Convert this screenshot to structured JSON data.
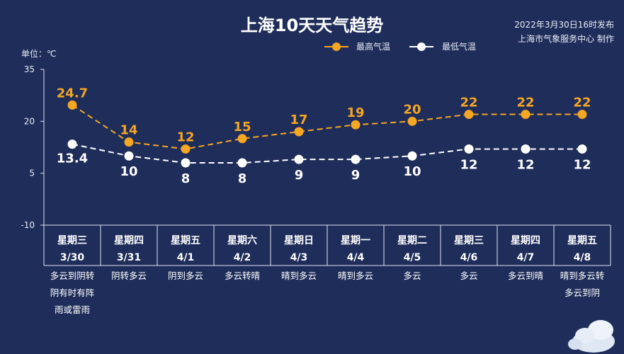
{
  "header": {
    "title": "上海10天天气趋势",
    "publish_time": "2022年3月30日16时发布",
    "publisher": "上海市气象服务中心 制作",
    "unit_label": "单位：℃"
  },
  "colors": {
    "background": "#1f2d5a",
    "high_series": "#f5a623",
    "low_series": "#ffffff"
  },
  "chart_data": {
    "type": "line",
    "title": "上海10天天气趋势",
    "ylabel": "单位：℃",
    "ylim": [
      -10,
      35
    ],
    "yticks": [
      35,
      20,
      5,
      -10
    ],
    "grid": false,
    "legend_position": "top-right",
    "categories": [
      {
        "weekday": "星期三",
        "date": "3/30",
        "weather": [
          "多云到阴转",
          "阴有时有阵",
          "雨或雷雨"
        ]
      },
      {
        "weekday": "星期四",
        "date": "3/31",
        "weather": [
          "阴转多云"
        ]
      },
      {
        "weekday": "星期五",
        "date": "4/1",
        "weather": [
          "阴到多云"
        ]
      },
      {
        "weekday": "星期六",
        "date": "4/2",
        "weather": [
          "多云转晴"
        ]
      },
      {
        "weekday": "星期日",
        "date": "4/3",
        "weather": [
          "晴到多云"
        ]
      },
      {
        "weekday": "星期一",
        "date": "4/4",
        "weather": [
          "晴到多云"
        ]
      },
      {
        "weekday": "星期二",
        "date": "4/5",
        "weather": [
          "多云"
        ]
      },
      {
        "weekday": "星期三",
        "date": "4/6",
        "weather": [
          "多云"
        ]
      },
      {
        "weekday": "星期四",
        "date": "4/7",
        "weather": [
          "多云到晴"
        ]
      },
      {
        "weekday": "星期五",
        "date": "4/8",
        "weather": [
          "晴到多云转",
          "多云到阴"
        ]
      }
    ],
    "series": [
      {
        "name": "最高气温",
        "key": "high",
        "color": "#f5a623",
        "values": [
          24.7,
          14,
          12,
          15,
          17,
          19,
          20,
          22,
          22,
          22
        ],
        "labels": [
          "24.7",
          "14",
          "12",
          "15",
          "17",
          "19",
          "20",
          "22",
          "22",
          "22"
        ]
      },
      {
        "name": "最低气温",
        "key": "low",
        "color": "#ffffff",
        "values": [
          13.4,
          10,
          8,
          8,
          9,
          9,
          10,
          12,
          12,
          12
        ],
        "labels": [
          "13.4",
          "10",
          "8",
          "8",
          "9",
          "9",
          "10",
          "12",
          "12",
          "12"
        ]
      }
    ]
  }
}
